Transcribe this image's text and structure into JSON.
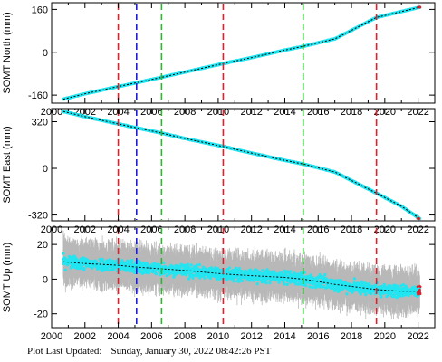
{
  "chart_data": [
    {
      "type": "scatter",
      "ylabel": "SOMT North (mm)",
      "xlim": [
        2000,
        2023
      ],
      "ylim": [
        -190,
        185
      ],
      "yticks": [
        160,
        0,
        -160
      ],
      "xticks": [
        2000,
        2002,
        2004,
        2006,
        2008,
        2010,
        2012,
        2014,
        2016,
        2018,
        2020,
        2022
      ],
      "grid": false,
      "series": [
        {
          "x": [
            2000.7,
            2002.0,
            2004.0,
            2005.0,
            2006.5,
            2008.0,
            2010.3,
            2012.0,
            2014.0,
            2015.1,
            2017.0,
            2019.5,
            2021.0,
            2022.1
          ],
          "y": [
            -175,
            -155,
            -128,
            -115,
            -95,
            -74,
            -42,
            -20,
            8,
            22,
            50,
            130,
            152,
            168
          ]
        }
      ]
    },
    {
      "type": "scatter",
      "ylabel": "SOMT East (mm)",
      "xlim": [
        2000,
        2023
      ],
      "ylim": [
        -360,
        410
      ],
      "yticks": [
        320,
        0,
        -320
      ],
      "xticks": [
        2000,
        2002,
        2004,
        2006,
        2008,
        2010,
        2012,
        2014,
        2016,
        2018,
        2020,
        2022
      ],
      "grid": false,
      "series": [
        {
          "x": [
            2000.7,
            2002.0,
            2004.0,
            2005.0,
            2006.5,
            2008.0,
            2010.3,
            2012.0,
            2014.0,
            2015.1,
            2017.0,
            2019.5,
            2021.0,
            2022.1
          ],
          "y": [
            390,
            355,
            305,
            280,
            245,
            205,
            150,
            105,
            55,
            30,
            -25,
            -170,
            -260,
            -345
          ]
        }
      ]
    },
    {
      "type": "scatter",
      "ylabel": "SOMT Up (mm)",
      "xlim": [
        2000,
        2023
      ],
      "ylim": [
        -28,
        30
      ],
      "yticks": [
        20,
        0,
        -20
      ],
      "xticks": [
        2000,
        2002,
        2004,
        2006,
        2008,
        2010,
        2012,
        2014,
        2016,
        2018,
        2020,
        2022
      ],
      "grid": false,
      "series": [
        {
          "x": [
            2000.7,
            2002.0,
            2004.0,
            2005.0,
            2006.5,
            2008.0,
            2010.3,
            2012.0,
            2014.0,
            2015.1,
            2017.0,
            2019.5,
            2021.0,
            2022.1
          ],
          "y": [
            10,
            9,
            8,
            7,
            6,
            5,
            3,
            2,
            1,
            0,
            -3,
            -6,
            -7,
            -7
          ]
        }
      ]
    }
  ],
  "events": [
    {
      "x": 2004.0,
      "color": "#e0202a"
    },
    {
      "x": 2005.1,
      "color": "#1d1ddb"
    },
    {
      "x": 2006.6,
      "color": "#2fb52f"
    },
    {
      "x": 2010.3,
      "color": "#e0202a"
    },
    {
      "x": 2015.1,
      "color": "#2fb52f"
    },
    {
      "x": 2019.5,
      "color": "#e0202a"
    }
  ],
  "colors": {
    "data": "#22e5f2",
    "errorbar": "#b8b8b8",
    "trend": "#000000",
    "recent": "#e0202a"
  },
  "footer": {
    "label": "Plot Last Updated:",
    "timestamp": "Sunday, January 30, 2022 08:42:26 PST"
  }
}
